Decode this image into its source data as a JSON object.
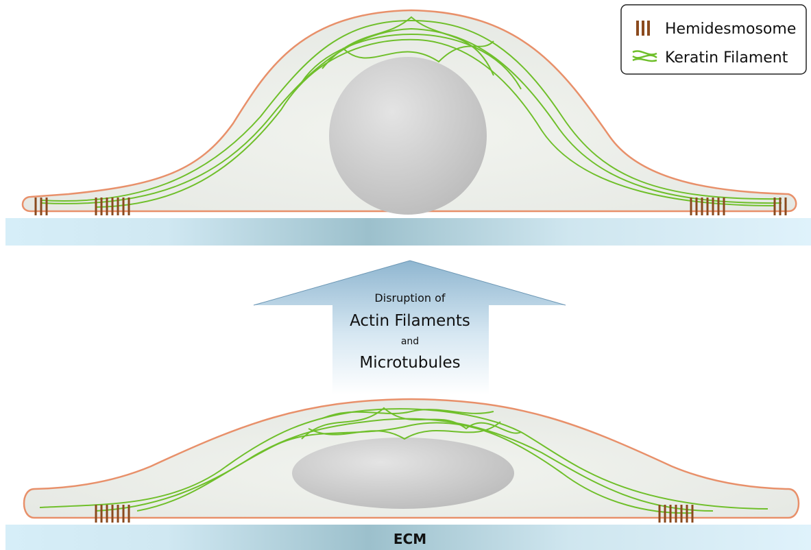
{
  "legend": {
    "items": [
      {
        "label": "Hemidesmosome"
      },
      {
        "label": "Keratin Filament"
      }
    ]
  },
  "arrow": {
    "lines": [
      "Disruption of",
      "Actin Filaments",
      "and",
      "Microtubules"
    ]
  },
  "ecm": {
    "label": "ECM"
  }
}
